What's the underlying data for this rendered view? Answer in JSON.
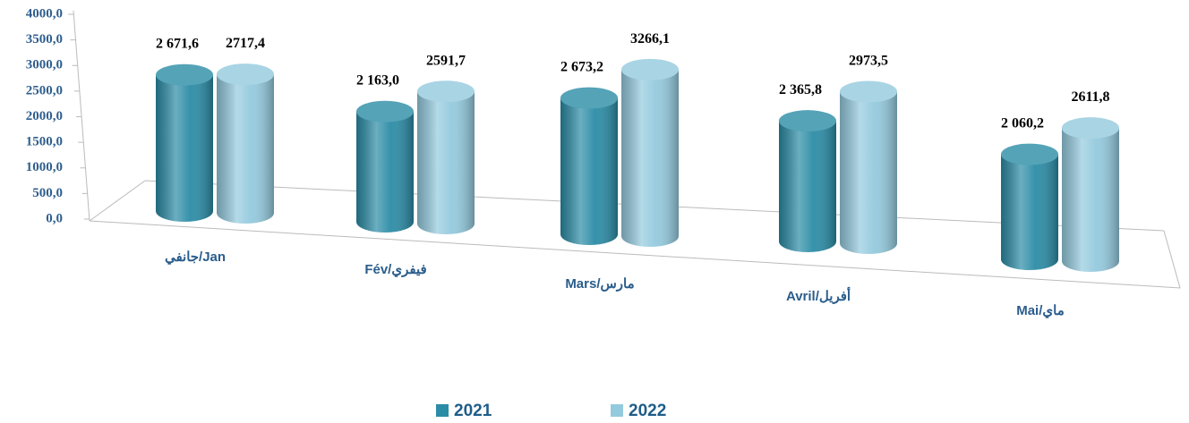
{
  "chart_data": {
    "type": "bar",
    "categories": [
      "جانفي/Jan",
      "Fév/فيفري",
      "Mars/مارس",
      "Avril/أفريل",
      "Mai/ماي"
    ],
    "series": [
      {
        "name": "2021",
        "color": "#2b8ca6",
        "values": [
          2671.6,
          2163.0,
          2673.2,
          2365.8,
          2060.2
        ],
        "value_labels": [
          "2 671,6",
          "2 163,0",
          "2 673,2",
          "2 365,8",
          "2 060,2"
        ]
      },
      {
        "name": "2022",
        "color": "#94cade",
        "values": [
          2717.4,
          2591.7,
          3266.1,
          2973.5,
          2611.8
        ],
        "value_labels": [
          "2717,4",
          "2591,7",
          "3266,1",
          "2973,5",
          "2611,8"
        ]
      }
    ],
    "ylim": [
      0,
      4000
    ],
    "yticks": [
      {
        "value": 0,
        "label": "0,0"
      },
      {
        "value": 500,
        "label": "500,0"
      },
      {
        "value": 1000,
        "label": "1000,0"
      },
      {
        "value": 1500,
        "label": "1500,0"
      },
      {
        "value": 2000,
        "label": "2000,0"
      },
      {
        "value": 2500,
        "label": "2500,0"
      },
      {
        "value": 3000,
        "label": "3000,0"
      },
      {
        "value": 3500,
        "label": "3500,0"
      },
      {
        "value": 4000,
        "label": "4000,0"
      }
    ]
  }
}
